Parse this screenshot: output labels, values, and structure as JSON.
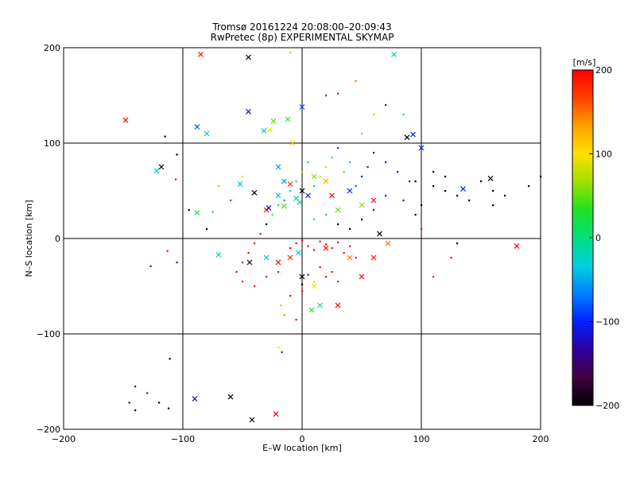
{
  "chart_data": {
    "type": "scatter",
    "title": "Tromsø 20161224 20:08:00–20:09:43",
    "subtitle": "RwPretec (8p) EXPERIMENTAL SKYMAP",
    "xlabel": "E–W location [km]",
    "ylabel": "N–S location [km]",
    "xlim": [
      -200,
      200
    ],
    "ylim": [
      -200,
      200
    ],
    "xticks": [
      -200,
      -100,
      0,
      100,
      200
    ],
    "yticks": [
      -200,
      -100,
      0,
      100,
      200
    ],
    "xtick_labels": [
      "−200",
      "−100",
      "0",
      "100",
      "200"
    ],
    "ytick_labels": [
      "−200",
      "−100",
      "0",
      "100",
      "200"
    ],
    "grid": true,
    "colorbar": {
      "label": "[m/s]",
      "range": [
        -200,
        200
      ],
      "ticks": [
        200,
        100,
        0,
        -100,
        -200
      ],
      "tick_labels": [
        "200",
        "100",
        "0",
        "−100",
        "−200"
      ],
      "colors": [
        "#000000",
        "#400040",
        "#3000a0",
        "#0020ff",
        "#0080ff",
        "#00d0e0",
        "#00e080",
        "#20e020",
        "#a0e000",
        "#ffe000",
        "#ffa000",
        "#ff4000",
        "#ff0000"
      ]
    },
    "markers": {
      "dot": "meteor echo (dot)",
      "cross": "meteor echo (cross)"
    },
    "series": [
      {
        "marker": "cross",
        "points": [
          [
            -85,
            193,
            190
          ],
          [
            -45,
            190,
            -200
          ],
          [
            -148,
            124,
            200
          ],
          [
            -118,
            75,
            -200
          ],
          [
            -88,
            117,
            -80
          ],
          [
            -80,
            110,
            -40
          ],
          [
            -45,
            133,
            -120
          ],
          [
            -32,
            113,
            -40
          ],
          [
            -27,
            114,
            100
          ],
          [
            -24,
            123,
            50
          ],
          [
            -12,
            125,
            40
          ],
          [
            -8,
            100,
            110
          ],
          [
            -122,
            71,
            -20
          ],
          [
            -88,
            27,
            20
          ],
          [
            -52,
            57,
            -40
          ],
          [
            -40,
            48,
            -200
          ],
          [
            -70,
            -17,
            -20
          ],
          [
            -20,
            75,
            -60
          ],
          [
            -20,
            45,
            -40
          ],
          [
            -15,
            34,
            50
          ],
          [
            -2,
            38,
            -20
          ],
          [
            0,
            50,
            -200
          ],
          [
            5,
            45,
            -100
          ],
          [
            -30,
            30,
            200
          ],
          [
            -28,
            32,
            -150
          ],
          [
            -15,
            60,
            -60
          ],
          [
            -10,
            57,
            170
          ],
          [
            -5,
            42,
            0
          ],
          [
            10,
            65,
            60
          ],
          [
            20,
            60,
            130
          ],
          [
            25,
            45,
            200
          ],
          [
            30,
            30,
            50
          ],
          [
            40,
            50,
            -100
          ],
          [
            50,
            35,
            60
          ],
          [
            60,
            40,
            200
          ],
          [
            65,
            5,
            -200
          ],
          [
            72,
            -5,
            150
          ],
          [
            88,
            106,
            -200
          ],
          [
            93,
            109,
            -100
          ],
          [
            100,
            95,
            -100
          ],
          [
            135,
            52,
            -100
          ],
          [
            158,
            63,
            -200
          ],
          [
            180,
            -8,
            200
          ],
          [
            -44,
            -25,
            -200
          ],
          [
            -30,
            -20,
            -40
          ],
          [
            -20,
            -25,
            200
          ],
          [
            -10,
            -20,
            180
          ],
          [
            -3,
            -15,
            -40
          ],
          [
            0,
            -40,
            -200
          ],
          [
            10,
            -50,
            100
          ],
          [
            20,
            -10,
            200
          ],
          [
            40,
            -20,
            150
          ],
          [
            50,
            -40,
            200
          ],
          [
            60,
            -20,
            190
          ],
          [
            30,
            -70,
            200
          ],
          [
            15,
            -70,
            0
          ],
          [
            8,
            -75,
            30
          ],
          [
            -90,
            -168,
            -120
          ],
          [
            -60,
            -166,
            -200
          ],
          [
            -42,
            -190,
            -200
          ],
          [
            -22,
            -184,
            200
          ],
          [
            77,
            193,
            -20
          ],
          [
            0,
            138,
            -80
          ]
        ]
      },
      {
        "marker": "dot",
        "points": [
          [
            -115,
            107,
            -200
          ],
          [
            -105,
            88,
            -200
          ],
          [
            -106,
            62,
            200
          ],
          [
            -95,
            30,
            -200
          ],
          [
            -113,
            -13,
            200
          ],
          [
            -127,
            -29,
            -100
          ],
          [
            -111,
            -126,
            -200
          ],
          [
            -140,
            -155,
            -150
          ],
          [
            -130,
            -162,
            -100
          ],
          [
            -145,
            -172,
            -150
          ],
          [
            -120,
            -172,
            -200
          ],
          [
            -140,
            -180,
            -200
          ],
          [
            -112,
            -178,
            -200
          ],
          [
            -20,
            -114,
            100
          ],
          [
            -17,
            -119,
            -100
          ],
          [
            -10,
            195,
            120
          ],
          [
            20,
            150,
            200
          ],
          [
            30,
            152,
            200
          ],
          [
            45,
            165,
            150
          ],
          [
            50,
            110,
            60
          ],
          [
            60,
            130,
            120
          ],
          [
            70,
            140,
            -100
          ],
          [
            85,
            130,
            -20
          ],
          [
            95,
            60,
            -200
          ],
          [
            110,
            55,
            -200
          ],
          [
            120,
            50,
            -200
          ],
          [
            130,
            45,
            -200
          ],
          [
            140,
            40,
            -200
          ],
          [
            150,
            60,
            -200
          ],
          [
            160,
            50,
            -200
          ],
          [
            170,
            45,
            -200
          ],
          [
            190,
            55,
            -200
          ],
          [
            200,
            65,
            -200
          ],
          [
            160,
            35,
            -200
          ],
          [
            120,
            65,
            -200
          ],
          [
            110,
            70,
            -200
          ],
          [
            100,
            35,
            -200
          ],
          [
            90,
            60,
            -100
          ],
          [
            80,
            70,
            -100
          ],
          [
            70,
            80,
            -100
          ],
          [
            60,
            90,
            -150
          ],
          [
            55,
            75,
            -100
          ],
          [
            50,
            65,
            -100
          ],
          [
            45,
            55,
            -80
          ],
          [
            40,
            80,
            -20
          ],
          [
            35,
            70,
            40
          ],
          [
            30,
            95,
            -100
          ],
          [
            25,
            85,
            40
          ],
          [
            20,
            75,
            120
          ],
          [
            15,
            65,
            80
          ],
          [
            10,
            55,
            -30
          ],
          [
            5,
            80,
            20
          ],
          [
            0,
            70,
            60
          ],
          [
            -5,
            60,
            -20
          ],
          [
            -10,
            50,
            -40
          ],
          [
            -15,
            40,
            -60
          ],
          [
            -20,
            35,
            0
          ],
          [
            -25,
            25,
            40
          ],
          [
            -30,
            15,
            -200
          ],
          [
            -35,
            5,
            200
          ],
          [
            -40,
            -5,
            200
          ],
          [
            -45,
            -15,
            200
          ],
          [
            -50,
            -25,
            200
          ],
          [
            -55,
            -35,
            200
          ],
          [
            -50,
            -45,
            200
          ],
          [
            -40,
            -50,
            200
          ],
          [
            -30,
            -40,
            200
          ],
          [
            -20,
            -35,
            200
          ],
          [
            -10,
            -10,
            200
          ],
          [
            -5,
            -5,
            200
          ],
          [
            0,
            -2,
            200
          ],
          [
            5,
            -8,
            200
          ],
          [
            10,
            -12,
            200
          ],
          [
            15,
            -3,
            200
          ],
          [
            20,
            -6,
            200
          ],
          [
            25,
            -10,
            200
          ],
          [
            30,
            -4,
            200
          ],
          [
            35,
            -15,
            200
          ],
          [
            40,
            -8,
            200
          ],
          [
            45,
            -20,
            200
          ],
          [
            15,
            -30,
            200
          ],
          [
            20,
            -40,
            200
          ],
          [
            25,
            -35,
            200
          ],
          [
            30,
            -45,
            200
          ],
          [
            10,
            -45,
            100
          ],
          [
            0,
            -55,
            200
          ],
          [
            -10,
            -60,
            190
          ],
          [
            -18,
            -70,
            120
          ],
          [
            -15,
            -80,
            140
          ],
          [
            -5,
            -85,
            200
          ],
          [
            5,
            -38,
            -100
          ],
          [
            0,
            -48,
            -200
          ],
          [
            10,
            20,
            -20
          ],
          [
            20,
            25,
            -30
          ],
          [
            30,
            15,
            -200
          ],
          [
            40,
            10,
            -200
          ],
          [
            50,
            20,
            -200
          ],
          [
            60,
            30,
            -100
          ],
          [
            70,
            45,
            -100
          ],
          [
            85,
            40,
            -100
          ],
          [
            95,
            25,
            -200
          ],
          [
            100,
            10,
            200
          ],
          [
            110,
            -40,
            200
          ],
          [
            125,
            -20,
            200
          ],
          [
            130,
            -5,
            -200
          ],
          [
            -50,
            65,
            90
          ],
          [
            -60,
            40,
            200
          ],
          [
            -70,
            55,
            60
          ],
          [
            -75,
            28,
            20
          ],
          [
            -80,
            10,
            -200
          ],
          [
            -105,
            -25,
            -100
          ]
        ]
      }
    ]
  }
}
